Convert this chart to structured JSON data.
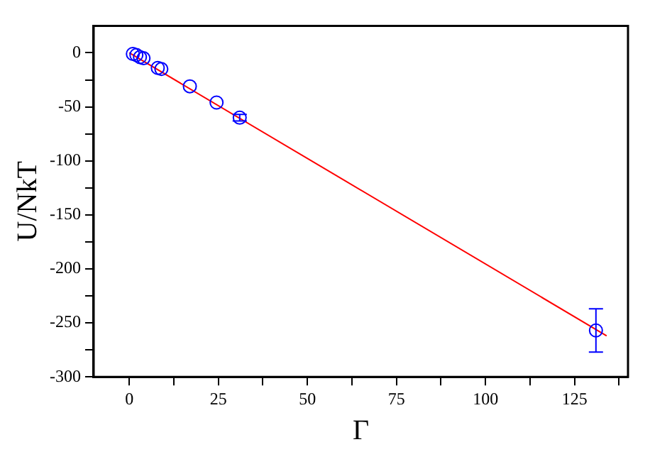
{
  "chart_data": {
    "type": "scatter",
    "xlabel": "Γ",
    "ylabel": "U/NkT",
    "marker": "circle",
    "grid": false,
    "legend": false,
    "xlim": [
      -10,
      140
    ],
    "ylim": [
      -300,
      25
    ],
    "xticks": [
      0,
      {
        "value": 12.5,
        "label": null
      },
      25,
      {
        "value": 37.5,
        "label": null
      },
      50,
      {
        "value": 62.5,
        "label": null
      },
      75,
      {
        "value": 87.5,
        "label": null
      },
      100,
      {
        "value": 112.5,
        "label": null
      },
      125,
      {
        "value": 137.5,
        "label": null
      }
    ],
    "yticks": [
      -300,
      {
        "value": -275,
        "label": null
      },
      -250,
      {
        "value": -225,
        "label": null
      },
      -200,
      {
        "value": -175,
        "label": null
      },
      -150,
      {
        "value": -125,
        "label": null
      },
      -100,
      {
        "value": -75,
        "label": null
      },
      -50,
      {
        "value": -25,
        "label": null
      },
      0
    ],
    "series": [
      {
        "type": "scatter",
        "color": "#0000ff",
        "x": [
          1,
          2,
          3,
          4,
          8,
          9,
          17,
          24.5,
          31,
          131
        ],
        "values": [
          -1,
          -2,
          -4,
          -5,
          -14,
          -15,
          -31,
          -46,
          -60,
          -257
        ],
        "errors": [
          null,
          null,
          null,
          null,
          null,
          null,
          null,
          null,
          3,
          20
        ]
      },
      {
        "type": "line",
        "color": "#ff0000",
        "marker": "none",
        "x": [
          0,
          134
        ],
        "values": [
          0,
          -262
        ]
      }
    ]
  }
}
